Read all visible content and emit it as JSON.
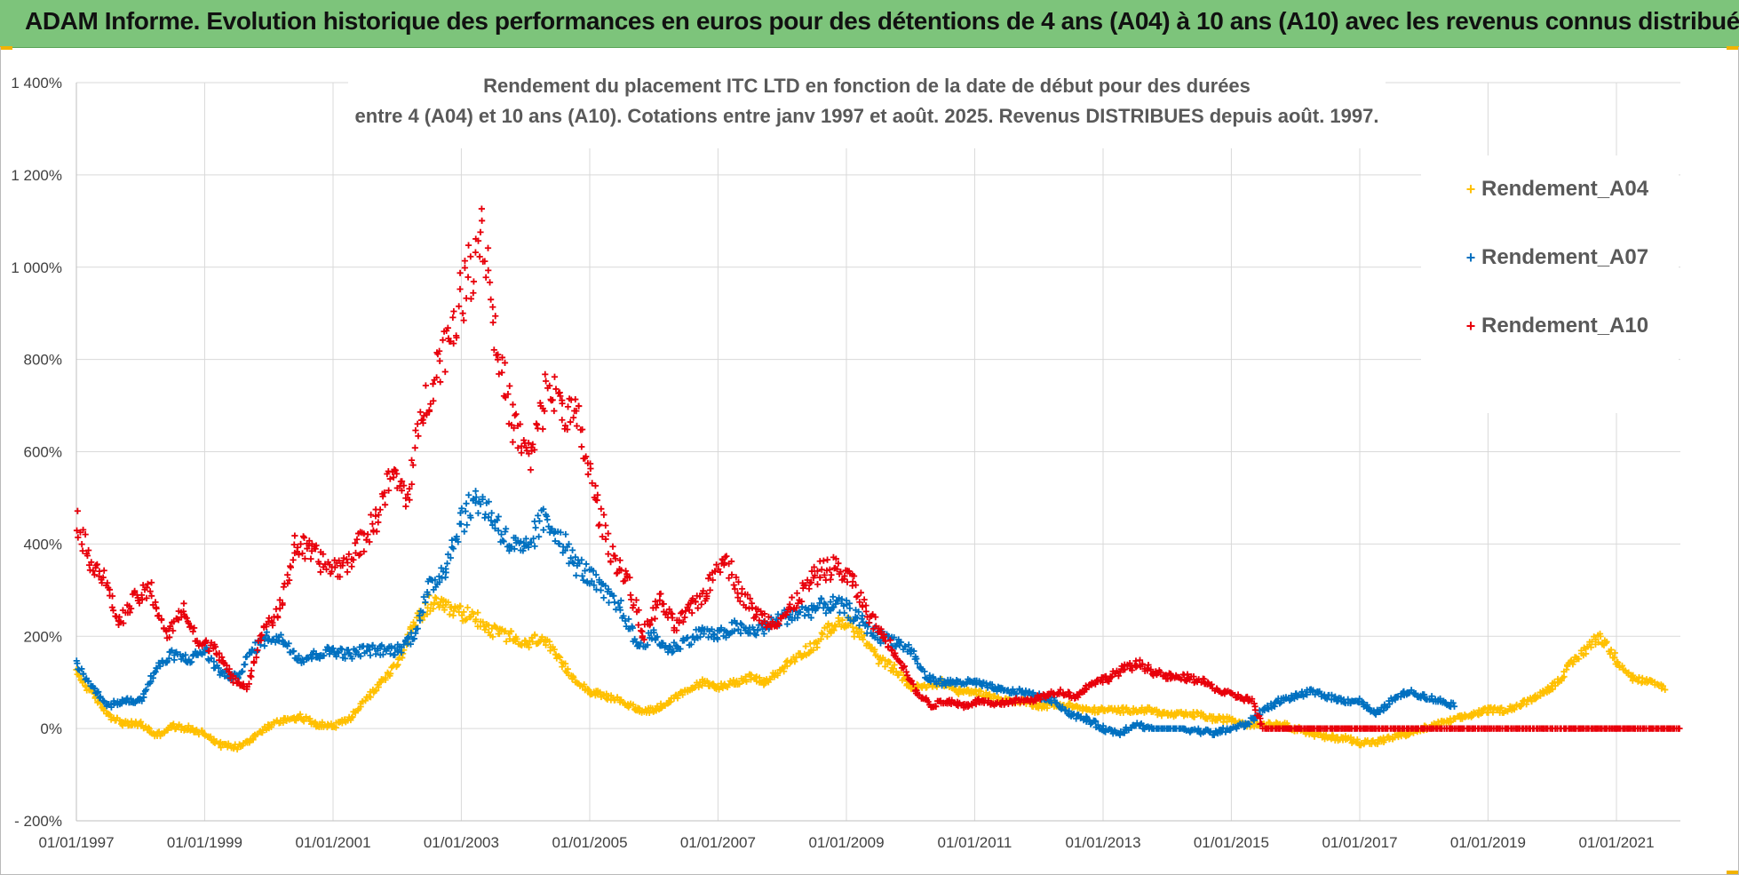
{
  "banner": {
    "title": "ADAM Informe. Evolution historique des performances en euros pour des détentions de 4 ans (A04) à 10 ans (A10) avec les revenus connus distribués"
  },
  "colors": {
    "banner_bg": "#7dc47b",
    "a04": "#ffc000",
    "a07": "#0070c0",
    "a10": "#e8000b",
    "grid": "#d9d9d9"
  },
  "chart_data": {
    "type": "scatter",
    "title_lines": [
      "Rendement du placement ITC LTD en fonction de la date de début pour des durées",
      "entre 4 (A04) et 10 ans (A10).  Cotations entre janv 1997 et août. 2025. Revenus DISTRIBUES depuis août. 1997."
    ],
    "xlabel": "",
    "ylabel": "",
    "x_ticks": [
      "01/01/1997",
      "01/01/1999",
      "01/01/2001",
      "01/01/2003",
      "01/01/2005",
      "01/01/2007",
      "01/01/2009",
      "01/01/2011",
      "01/01/2013",
      "01/01/2015",
      "01/01/2017",
      "01/01/2019",
      "01/01/2021"
    ],
    "xlim": [
      "01/01/1997",
      "31/12/2021"
    ],
    "y_ticks": [
      "- 200%",
      "0%",
      "200%",
      "400%",
      "600%",
      "800%",
      "1 000%",
      "1 200%",
      "1 400%"
    ],
    "ylim": [
      -200,
      1400
    ],
    "grid": true,
    "legend_position": "top-right",
    "marker": "+",
    "series": [
      {
        "name": "Rendement_A04",
        "color": "#ffc000",
        "points": [
          [
            "1997-01-01",
            120
          ],
          [
            "1997-04-01",
            75
          ],
          [
            "1997-07-01",
            30
          ],
          [
            "1997-10-01",
            10
          ],
          [
            "1998-01-01",
            10
          ],
          [
            "1998-04-01",
            -15
          ],
          [
            "1998-07-01",
            5
          ],
          [
            "1998-10-01",
            0
          ],
          [
            "1999-01-01",
            -10
          ],
          [
            "1999-04-01",
            -35
          ],
          [
            "1999-07-01",
            -40
          ],
          [
            "1999-10-01",
            -20
          ],
          [
            "2000-01-01",
            5
          ],
          [
            "2000-04-01",
            20
          ],
          [
            "2000-07-01",
            25
          ],
          [
            "2000-10-01",
            10
          ],
          [
            "2001-01-01",
            5
          ],
          [
            "2001-04-01",
            20
          ],
          [
            "2001-07-01",
            60
          ],
          [
            "2001-10-01",
            100
          ],
          [
            "2002-01-01",
            140
          ],
          [
            "2002-04-01",
            220
          ],
          [
            "2002-07-01",
            270
          ],
          [
            "2002-10-01",
            260
          ],
          [
            "2003-01-01",
            250
          ],
          [
            "2003-04-01",
            240
          ],
          [
            "2003-07-01",
            210
          ],
          [
            "2003-10-01",
            200
          ],
          [
            "2004-01-01",
            180
          ],
          [
            "2004-04-01",
            200
          ],
          [
            "2004-07-01",
            150
          ],
          [
            "2004-10-01",
            110
          ],
          [
            "2005-01-01",
            80
          ],
          [
            "2005-04-01",
            70
          ],
          [
            "2005-07-01",
            60
          ],
          [
            "2005-10-01",
            40
          ],
          [
            "2006-01-01",
            40
          ],
          [
            "2006-04-01",
            60
          ],
          [
            "2006-07-01",
            80
          ],
          [
            "2006-10-01",
            100
          ],
          [
            "2007-01-01",
            90
          ],
          [
            "2007-04-01",
            100
          ],
          [
            "2007-07-01",
            110
          ],
          [
            "2007-10-01",
            100
          ],
          [
            "2008-01-01",
            130
          ],
          [
            "2008-04-01",
            160
          ],
          [
            "2008-07-01",
            180
          ],
          [
            "2008-10-01",
            220
          ],
          [
            "2009-01-01",
            230
          ],
          [
            "2009-04-01",
            200
          ],
          [
            "2009-07-01",
            150
          ],
          [
            "2009-10-01",
            130
          ],
          [
            "2010-01-01",
            90
          ],
          [
            "2010-04-01",
            90
          ],
          [
            "2010-07-01",
            100
          ],
          [
            "2010-10-01",
            80
          ],
          [
            "2011-01-01",
            80
          ],
          [
            "2011-04-01",
            70
          ],
          [
            "2011-07-01",
            60
          ],
          [
            "2011-10-01",
            60
          ],
          [
            "2012-01-01",
            50
          ],
          [
            "2012-04-01",
            50
          ],
          [
            "2012-07-01",
            50
          ],
          [
            "2012-10-01",
            40
          ],
          [
            "2013-01-01",
            40
          ],
          [
            "2013-04-01",
            40
          ],
          [
            "2013-07-01",
            40
          ],
          [
            "2013-10-01",
            40
          ],
          [
            "2014-01-01",
            30
          ],
          [
            "2014-04-01",
            30
          ],
          [
            "2014-07-01",
            30
          ],
          [
            "2014-10-01",
            20
          ],
          [
            "2015-01-01",
            20
          ],
          [
            "2015-04-01",
            10
          ],
          [
            "2015-07-01",
            10
          ],
          [
            "2015-10-01",
            10
          ],
          [
            "2016-01-01",
            0
          ],
          [
            "2016-04-01",
            -10
          ],
          [
            "2016-07-01",
            -20
          ],
          [
            "2016-10-01",
            -20
          ],
          [
            "2017-01-01",
            -30
          ],
          [
            "2017-04-01",
            -30
          ],
          [
            "2017-07-01",
            -20
          ],
          [
            "2017-10-01",
            -10
          ],
          [
            "2018-01-01",
            0
          ],
          [
            "2018-04-01",
            10
          ],
          [
            "2018-07-01",
            20
          ],
          [
            "2018-10-01",
            30
          ],
          [
            "2019-01-01",
            40
          ],
          [
            "2019-04-01",
            40
          ],
          [
            "2019-07-01",
            50
          ],
          [
            "2019-10-01",
            70
          ],
          [
            "2020-01-01",
            90
          ],
          [
            "2020-04-01",
            130
          ],
          [
            "2020-07-01",
            170
          ],
          [
            "2020-10-01",
            200
          ],
          [
            "2021-01-01",
            150
          ],
          [
            "2021-04-01",
            110
          ],
          [
            "2021-07-01",
            100
          ],
          [
            "2021-10-01",
            90
          ]
        ]
      },
      {
        "name": "Rendement_A07",
        "color": "#0070c0",
        "points": [
          [
            "1997-01-01",
            140
          ],
          [
            "1997-04-01",
            90
          ],
          [
            "1997-07-01",
            50
          ],
          [
            "1997-10-01",
            60
          ],
          [
            "1998-01-01",
            60
          ],
          [
            "1998-04-01",
            130
          ],
          [
            "1998-07-01",
            160
          ],
          [
            "1998-10-01",
            150
          ],
          [
            "1999-01-01",
            170
          ],
          [
            "1999-04-01",
            120
          ],
          [
            "1999-07-01",
            110
          ],
          [
            "1999-10-01",
            170
          ],
          [
            "2000-01-01",
            200
          ],
          [
            "2000-04-01",
            190
          ],
          [
            "2000-07-01",
            150
          ],
          [
            "2000-10-01",
            160
          ],
          [
            "2001-01-01",
            170
          ],
          [
            "2001-04-01",
            160
          ],
          [
            "2001-07-01",
            170
          ],
          [
            "2001-10-01",
            170
          ],
          [
            "2002-01-01",
            170
          ],
          [
            "2002-04-01",
            200
          ],
          [
            "2002-07-01",
            300
          ],
          [
            "2002-10-01",
            350
          ],
          [
            "2003-01-01",
            450
          ],
          [
            "2003-04-01",
            500
          ],
          [
            "2003-07-01",
            460
          ],
          [
            "2003-10-01",
            400
          ],
          [
            "2004-01-01",
            380
          ],
          [
            "2004-04-01",
            450
          ],
          [
            "2004-07-01",
            430
          ],
          [
            "2004-10-01",
            360
          ],
          [
            "2005-01-01",
            330
          ],
          [
            "2005-04-01",
            290
          ],
          [
            "2005-07-01",
            260
          ],
          [
            "2005-10-01",
            180
          ],
          [
            "2006-01-01",
            200
          ],
          [
            "2006-04-01",
            170
          ],
          [
            "2006-07-01",
            190
          ],
          [
            "2006-10-01",
            210
          ],
          [
            "2007-01-01",
            200
          ],
          [
            "2007-04-01",
            220
          ],
          [
            "2007-07-01",
            210
          ],
          [
            "2007-10-01",
            220
          ],
          [
            "2008-01-01",
            240
          ],
          [
            "2008-04-01",
            250
          ],
          [
            "2008-07-01",
            260
          ],
          [
            "2008-10-01",
            270
          ],
          [
            "2009-01-01",
            260
          ],
          [
            "2009-04-01",
            230
          ],
          [
            "2009-07-01",
            200
          ],
          [
            "2009-10-01",
            190
          ],
          [
            "2010-01-01",
            170
          ],
          [
            "2010-04-01",
            110
          ],
          [
            "2010-07-01",
            100
          ],
          [
            "2010-10-01",
            100
          ],
          [
            "2011-01-01",
            100
          ],
          [
            "2011-04-01",
            90
          ],
          [
            "2011-07-01",
            80
          ],
          [
            "2011-10-01",
            80
          ],
          [
            "2012-01-01",
            70
          ],
          [
            "2012-04-01",
            60
          ],
          [
            "2012-07-01",
            30
          ],
          [
            "2012-10-01",
            20
          ],
          [
            "2013-01-01",
            0
          ],
          [
            "2013-04-01",
            -10
          ],
          [
            "2013-07-01",
            10
          ],
          [
            "2013-10-01",
            0
          ],
          [
            "2014-01-01",
            0
          ],
          [
            "2014-04-01",
            0
          ],
          [
            "2014-07-01",
            -5
          ],
          [
            "2014-10-01",
            -10
          ],
          [
            "2015-01-01",
            0
          ],
          [
            "2015-04-01",
            10
          ],
          [
            "2015-07-01",
            40
          ],
          [
            "2015-10-01",
            60
          ],
          [
            "2016-01-01",
            70
          ],
          [
            "2016-04-01",
            80
          ],
          [
            "2016-07-01",
            70
          ],
          [
            "2016-10-01",
            60
          ],
          [
            "2017-01-01",
            60
          ],
          [
            "2017-04-01",
            30
          ],
          [
            "2017-07-01",
            60
          ],
          [
            "2017-10-01",
            80
          ],
          [
            "2018-01-01",
            70
          ],
          [
            "2018-04-01",
            60
          ],
          [
            "2018-07-01",
            50
          ]
        ]
      },
      {
        "name": "Rendement_A10",
        "color": "#e8000b",
        "points": [
          [
            "1997-01-01",
            460
          ],
          [
            "1997-03-01",
            380
          ],
          [
            "1997-06-01",
            330
          ],
          [
            "1997-09-01",
            230
          ],
          [
            "1997-12-01",
            280
          ],
          [
            "1998-03-01",
            300
          ],
          [
            "1998-06-01",
            200
          ],
          [
            "1998-09-01",
            260
          ],
          [
            "1998-12-01",
            180
          ],
          [
            "1999-03-01",
            180
          ],
          [
            "1999-06-01",
            110
          ],
          [
            "1999-09-01",
            90
          ],
          [
            "1999-12-01",
            220
          ],
          [
            "2000-03-01",
            250
          ],
          [
            "2000-06-01",
            400
          ],
          [
            "2000-09-01",
            380
          ],
          [
            "2000-12-01",
            350
          ],
          [
            "2001-03-01",
            350
          ],
          [
            "2001-06-01",
            400
          ],
          [
            "2001-09-01",
            450
          ],
          [
            "2001-12-01",
            550
          ],
          [
            "2002-03-01",
            500
          ],
          [
            "2002-06-01",
            700
          ],
          [
            "2002-09-01",
            800
          ],
          [
            "2002-12-01",
            900
          ],
          [
            "2003-03-01",
            1000
          ],
          [
            "2003-05-01",
            1100
          ],
          [
            "2003-08-01",
            800
          ],
          [
            "2003-11-01",
            650
          ],
          [
            "2004-02-01",
            580
          ],
          [
            "2004-05-01",
            740
          ],
          [
            "2004-08-01",
            700
          ],
          [
            "2004-11-01",
            660
          ],
          [
            "2005-02-01",
            500
          ],
          [
            "2005-05-01",
            380
          ],
          [
            "2005-08-01",
            330
          ],
          [
            "2005-11-01",
            200
          ],
          [
            "2006-02-01",
            280
          ],
          [
            "2006-05-01",
            220
          ],
          [
            "2006-08-01",
            260
          ],
          [
            "2006-11-01",
            300
          ],
          [
            "2007-02-01",
            380
          ],
          [
            "2007-05-01",
            300
          ],
          [
            "2007-08-01",
            250
          ],
          [
            "2007-11-01",
            230
          ],
          [
            "2008-02-01",
            250
          ],
          [
            "2008-05-01",
            300
          ],
          [
            "2008-08-01",
            340
          ],
          [
            "2008-11-01",
            350
          ],
          [
            "2009-02-01",
            320
          ],
          [
            "2009-05-01",
            250
          ],
          [
            "2009-08-01",
            200
          ],
          [
            "2009-11-01",
            150
          ],
          [
            "2010-02-01",
            80
          ],
          [
            "2010-05-01",
            50
          ],
          [
            "2010-08-01",
            60
          ],
          [
            "2010-11-01",
            50
          ],
          [
            "2011-02-01",
            60
          ],
          [
            "2011-05-01",
            50
          ],
          [
            "2011-08-01",
            60
          ],
          [
            "2011-11-01",
            60
          ],
          [
            "2012-02-01",
            70
          ],
          [
            "2012-05-01",
            80
          ],
          [
            "2012-08-01",
            70
          ],
          [
            "2012-11-01",
            100
          ],
          [
            "2013-02-01",
            110
          ],
          [
            "2013-05-01",
            130
          ],
          [
            "2013-08-01",
            140
          ],
          [
            "2013-11-01",
            120
          ],
          [
            "2014-02-01",
            110
          ],
          [
            "2014-05-01",
            110
          ],
          [
            "2014-08-01",
            100
          ],
          [
            "2014-11-01",
            80
          ],
          [
            "2015-02-01",
            70
          ],
          [
            "2015-05-01",
            60
          ],
          [
            "2015-07-01",
            0
          ],
          [
            "2021-12-31",
            0
          ]
        ]
      }
    ]
  }
}
